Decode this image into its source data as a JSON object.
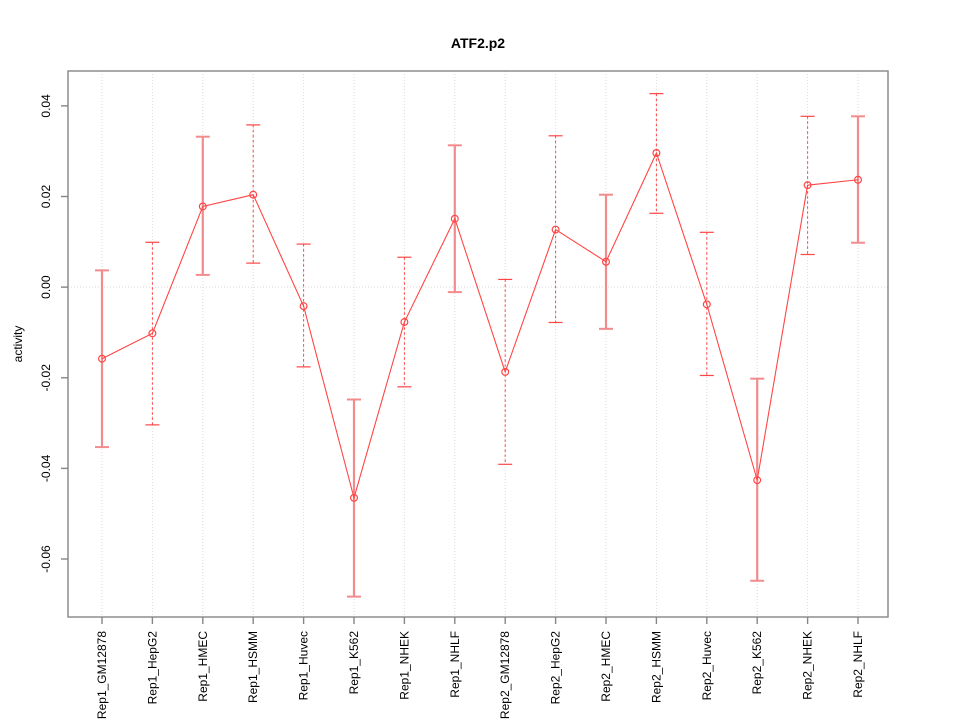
{
  "chart_data": {
    "type": "line",
    "title": "ATF2.p2",
    "ylabel": "activity",
    "xlabel": "",
    "legend": "none",
    "grid": "dotted vertical line per category plus dotted horizontal line at 0",
    "categories": [
      "Rep1_GM12878",
      "Rep1_HepG2",
      "Rep1_HMEC",
      "Rep1_HSMM",
      "Rep1_Huvec",
      "Rep1_K562",
      "Rep1_NHEK",
      "Rep1_NHLF",
      "Rep2_GM12878",
      "Rep2_HepG2",
      "Rep2_HMEC",
      "Rep2_HSMM",
      "Rep2_Huvec",
      "Rep2_K562",
      "Rep2_NHEK",
      "Rep2_NHLF"
    ],
    "series": [
      {
        "name": "activity",
        "values": [
          -0.0158,
          -0.0102,
          0.0178,
          0.0204,
          -0.0042,
          -0.0465,
          -0.0077,
          0.0151,
          -0.0187,
          0.0127,
          0.0056,
          0.0296,
          -0.0038,
          -0.0426,
          0.0225,
          0.0237
        ],
        "err_lo": [
          -0.0353,
          -0.0304,
          0.0027,
          0.0053,
          -0.0176,
          -0.0683,
          -0.022,
          -0.0011,
          -0.0391,
          -0.0078,
          -0.0092,
          0.0163,
          -0.0195,
          -0.0648,
          0.0072,
          0.0098
        ],
        "err_hi": [
          0.0037,
          0.0099,
          0.0332,
          0.0358,
          0.0095,
          -0.0248,
          0.0066,
          0.0313,
          0.0017,
          0.0334,
          0.0204,
          0.0427,
          0.0121,
          -0.0202,
          0.0377,
          0.0377
        ],
        "bar_styles": [
          "solid",
          "dashed",
          "solid",
          "dashed",
          "dashed",
          "solid",
          "dashed",
          "solid",
          "dashed",
          "dashed",
          "solid",
          "dashed",
          "dashed",
          "solid",
          "dashed",
          "solid"
        ]
      }
    ],
    "yticks": [
      0.04,
      0.02,
      0,
      -0.02,
      -0.04,
      -0.06
    ],
    "ytick_labels": [
      "0.04",
      "0.02",
      "0.00",
      "-0.02",
      "-0.04",
      "-0.06"
    ],
    "ylim": [
      -0.0728,
      0.0477
    ],
    "colors": {
      "line": "#ff4545",
      "point": "#ff4545",
      "error_bar_dashed": "#ff4545",
      "error_bar_solid": "#f28c8c",
      "grid": "#dadada",
      "frame": "#868686",
      "text": "#000000",
      "background": "#ffffff"
    }
  }
}
